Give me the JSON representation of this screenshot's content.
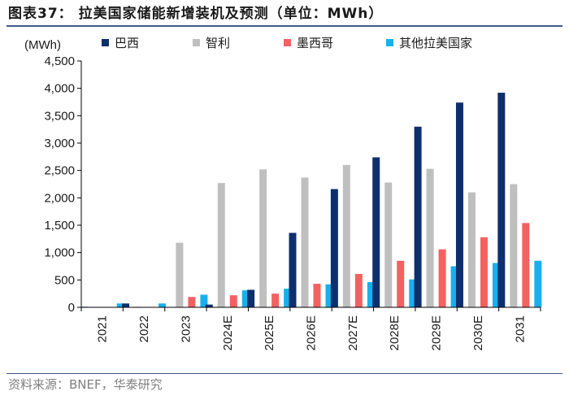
{
  "figure": {
    "title": "图表37： 拉美国家储能新增装机及预测（单位：MWh）",
    "source": "资料来源：BNEF，华泰研究"
  },
  "chart_data": {
    "type": "bar",
    "title": "拉美国家储能新增装机及预测（单位：MWh）",
    "ylabel": "(MWh)",
    "xlabel": "",
    "ylim": [
      0,
      4500
    ],
    "yticks": [
      0,
      500,
      1000,
      1500,
      2000,
      2500,
      3000,
      3500,
      4000,
      4500
    ],
    "ytick_labels": [
      "0",
      "500",
      "1,000",
      "1,500",
      "2,000",
      "2,500",
      "3,000",
      "3,500",
      "4,000",
      "4,500"
    ],
    "grid": false,
    "legend_position": "top",
    "categories": [
      "2021",
      "2022",
      "2023",
      "2024E",
      "2025E",
      "2026E",
      "2027E",
      "2028E",
      "2029E",
      "2030E",
      "2031"
    ],
    "series": [
      {
        "name": "巴西",
        "color": "#0e2f6e",
        "values": [
          10,
          70,
          5,
          50,
          320,
          1360,
          2160,
          2740,
          3300,
          3740,
          3920
        ]
      },
      {
        "name": "智利",
        "color": "#bfbfbf",
        "values": [
          5,
          10,
          1180,
          2270,
          2520,
          2370,
          2600,
          2280,
          2530,
          2100,
          2250
        ]
      },
      {
        "name": "墨西哥",
        "color": "#f46161",
        "values": [
          5,
          5,
          190,
          220,
          250,
          430,
          610,
          850,
          1060,
          1280,
          1540
        ]
      },
      {
        "name": "其他拉美国家",
        "color": "#18b0ec",
        "values": [
          70,
          70,
          230,
          310,
          340,
          420,
          460,
          510,
          750,
          810,
          850
        ]
      }
    ]
  }
}
